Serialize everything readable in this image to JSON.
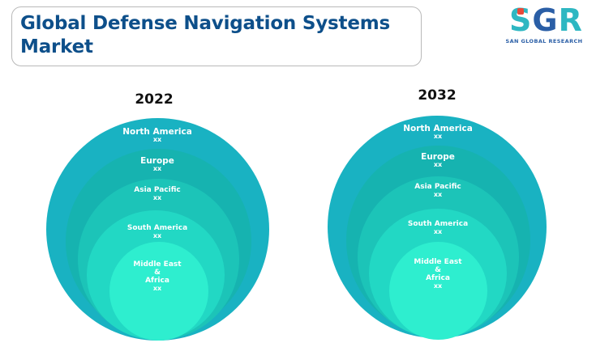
{
  "title": "Global Defense Navigation Systems Market",
  "logo": {
    "letters": [
      "S",
      "G",
      "R"
    ],
    "tagline": "SAN GLOBAL RESEARCH"
  },
  "colors": {
    "title": "#0d4f8a",
    "ring_1": "#19b2c2",
    "ring_2": "#16b3b0",
    "ring_3": "#1cc4b8",
    "ring_4": "#22d8c4",
    "ring_5": "#2eeecf"
  },
  "panels": [
    {
      "year": "2022",
      "regions": [
        {
          "name": "North America",
          "value": "xx"
        },
        {
          "name": "Europe",
          "value": "xx"
        },
        {
          "name": "Asia Pacific",
          "value": "xx"
        },
        {
          "name": "South America",
          "value": "xx"
        },
        {
          "name": "Middle East & Africa",
          "line1": "Middle East",
          "line2": "&",
          "line3": "Africa",
          "value": "xx"
        }
      ]
    },
    {
      "year": "2032",
      "regions": [
        {
          "name": "North America",
          "value": "xx"
        },
        {
          "name": "Europe",
          "value": "xx"
        },
        {
          "name": "Asia Pacific",
          "value": "xx"
        },
        {
          "name": "South America",
          "value": "xx"
        },
        {
          "name": "Middle East & Africa",
          "line1": "Middle East",
          "line2": "&",
          "line3": "Africa",
          "value": "xx"
        }
      ]
    }
  ]
}
